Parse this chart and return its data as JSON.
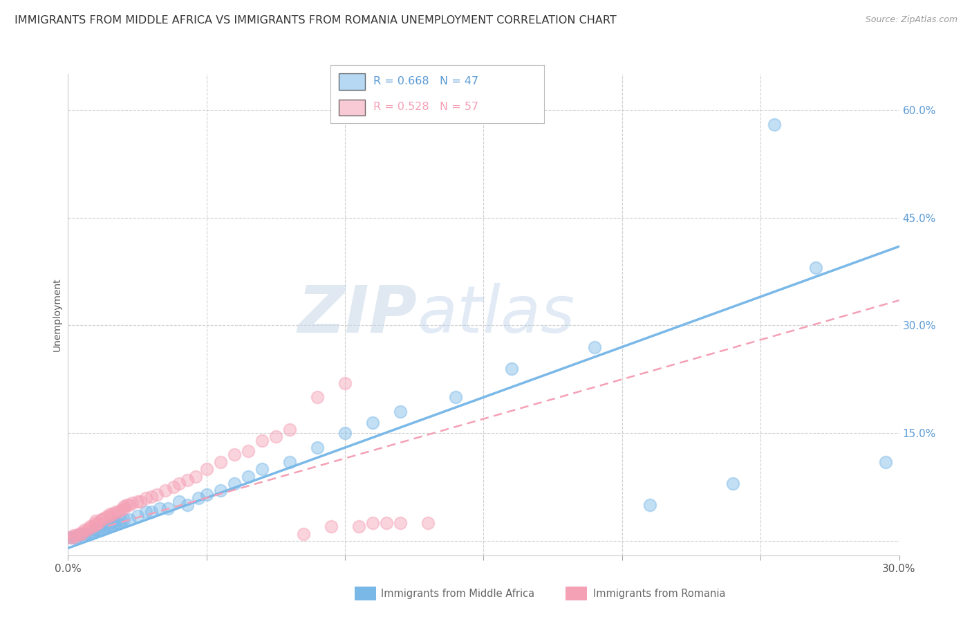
{
  "title": "IMMIGRANTS FROM MIDDLE AFRICA VS IMMIGRANTS FROM ROMANIA UNEMPLOYMENT CORRELATION CHART",
  "source": "Source: ZipAtlas.com",
  "ylabel": "Unemployment",
  "right_yticks": [
    0.0,
    0.15,
    0.3,
    0.45,
    0.6
  ],
  "right_yticklabels": [
    "",
    "15.0%",
    "30.0%",
    "45.0%",
    "60.0%"
  ],
  "xlim": [
    0.0,
    0.3
  ],
  "ylim": [
    -0.02,
    0.65
  ],
  "blue_color": "#7ab8e8",
  "pink_color": "#f4a0b5",
  "blue_R": 0.668,
  "blue_N": 47,
  "pink_R": 0.528,
  "pink_N": 57,
  "legend_label_blue": "Immigrants from Middle Africa",
  "legend_label_pink": "Immigrants from Romania",
  "watermark_zip": "ZIP",
  "watermark_atlas": "atlas",
  "grid_color": "#d0d0d0",
  "background_color": "#ffffff",
  "title_fontsize": 11.5,
  "source_fontsize": 9,
  "tick_fontsize": 11,
  "ylabel_fontsize": 10,
  "right_tick_color": "#5b9bd5",
  "blue_line_intercept": -0.01,
  "blue_line_slope": 1.4,
  "pink_line_intercept": 0.005,
  "pink_line_slope": 1.1,
  "blue_scatter_x": [
    0.001,
    0.002,
    0.003,
    0.004,
    0.005,
    0.006,
    0.007,
    0.008,
    0.009,
    0.01,
    0.011,
    0.012,
    0.013,
    0.014,
    0.015,
    0.016,
    0.017,
    0.018,
    0.019,
    0.02,
    0.022,
    0.025,
    0.028,
    0.03,
    0.033,
    0.036,
    0.04,
    0.043,
    0.047,
    0.05,
    0.055,
    0.06,
    0.065,
    0.07,
    0.08,
    0.09,
    0.1,
    0.11,
    0.12,
    0.14,
    0.16,
    0.19,
    0.21,
    0.24,
    0.255,
    0.27,
    0.295
  ],
  "blue_scatter_y": [
    0.005,
    0.005,
    0.005,
    0.008,
    0.01,
    0.01,
    0.01,
    0.01,
    0.012,
    0.015,
    0.015,
    0.015,
    0.018,
    0.02,
    0.02,
    0.022,
    0.025,
    0.025,
    0.028,
    0.03,
    0.03,
    0.035,
    0.04,
    0.04,
    0.045,
    0.045,
    0.055,
    0.05,
    0.06,
    0.065,
    0.07,
    0.08,
    0.09,
    0.1,
    0.11,
    0.13,
    0.15,
    0.165,
    0.18,
    0.2,
    0.24,
    0.27,
    0.05,
    0.08,
    0.58,
    0.38,
    0.11
  ],
  "pink_scatter_x": [
    0.001,
    0.002,
    0.002,
    0.003,
    0.004,
    0.005,
    0.005,
    0.006,
    0.007,
    0.008,
    0.008,
    0.009,
    0.01,
    0.01,
    0.01,
    0.011,
    0.012,
    0.012,
    0.013,
    0.014,
    0.015,
    0.015,
    0.016,
    0.017,
    0.018,
    0.019,
    0.02,
    0.02,
    0.021,
    0.022,
    0.023,
    0.025,
    0.026,
    0.028,
    0.03,
    0.032,
    0.035,
    0.038,
    0.04,
    0.043,
    0.046,
    0.05,
    0.055,
    0.06,
    0.065,
    0.07,
    0.075,
    0.08,
    0.085,
    0.09,
    0.095,
    0.1,
    0.105,
    0.11,
    0.115,
    0.12,
    0.13
  ],
  "pink_scatter_y": [
    0.005,
    0.005,
    0.008,
    0.008,
    0.01,
    0.01,
    0.012,
    0.015,
    0.015,
    0.018,
    0.02,
    0.02,
    0.022,
    0.025,
    0.028,
    0.025,
    0.03,
    0.03,
    0.032,
    0.035,
    0.035,
    0.038,
    0.038,
    0.04,
    0.04,
    0.043,
    0.045,
    0.048,
    0.05,
    0.05,
    0.053,
    0.055,
    0.055,
    0.06,
    0.062,
    0.065,
    0.07,
    0.075,
    0.08,
    0.085,
    0.09,
    0.1,
    0.11,
    0.12,
    0.125,
    0.14,
    0.145,
    0.155,
    0.01,
    0.2,
    0.02,
    0.22,
    0.02,
    0.025,
    0.025,
    0.025,
    0.025
  ]
}
